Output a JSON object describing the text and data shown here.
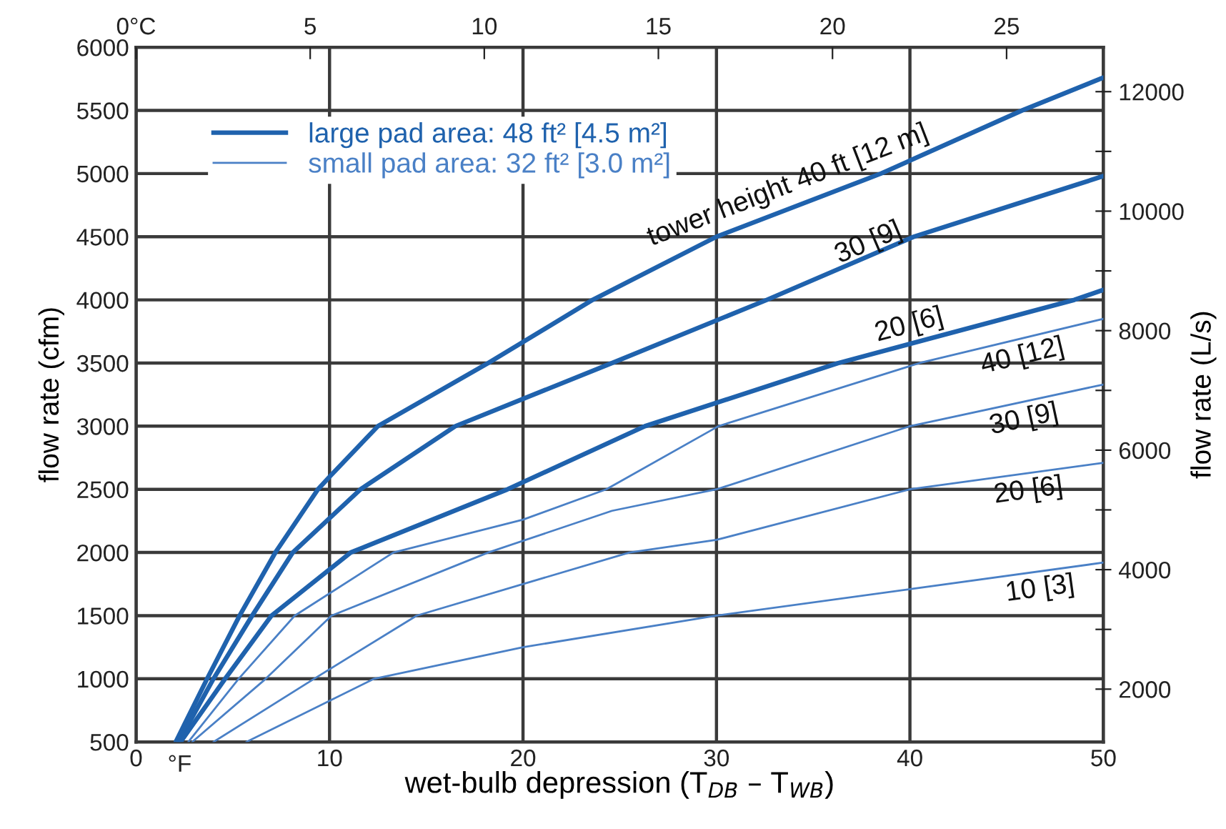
{
  "chart_data": {
    "type": "line",
    "xlabel": "wet-bulb depression (T$_{DB}$ – T$_{WB}$)",
    "ylabel": "flow rate (cfm)",
    "y2label": "flow rate (L/s)",
    "xlim": [
      0,
      50
    ],
    "xticks": [
      0,
      10,
      20,
      30,
      40,
      50
    ],
    "x2lim": [
      0,
      27.78
    ],
    "x2ticks": [
      {
        "value": 0,
        "label": "0°C"
      },
      5,
      10,
      15,
      20,
      25
    ],
    "ylim": [
      500,
      6000
    ],
    "yticks": [
      500,
      1000,
      1500,
      2000,
      2500,
      3000,
      3500,
      4000,
      4500,
      5000,
      5500,
      6000
    ],
    "y2lim": [
      1116,
      12743
    ],
    "y2ticks": [
      2000,
      {
        "value": 3000,
        "label": null
      },
      4000,
      {
        "value": 5000,
        "label": null
      },
      6000,
      {
        "value": 7000,
        "label": null
      },
      8000,
      {
        "value": 9000,
        "label": null
      },
      10000,
      {
        "value": 11000,
        "label": null
      },
      12000
    ],
    "grid": true,
    "legend": "top left",
    "marker": "none",
    "line_style": "solid",
    "series": [
      {
        "name": "large pad area: 48 ft² [4.5 m²]",
        "color": "#1f62ad",
        "x": [
          2.05,
          3.67,
          5.35,
          7.2,
          9.4,
          10,
          12.5,
          18.2,
          23.6,
          30,
          38.5,
          45.8,
          50
        ],
        "values": [
          500,
          1000,
          1500,
          2000,
          2500,
          2600,
          3000,
          3500,
          4000,
          4500,
          5000,
          5500,
          5760
        ]
      },
      {
        "color": "#1f62ad",
        "x": [
          2.2,
          4.0,
          6.0,
          8.1,
          11.6,
          16.5,
          24.6,
          32.6,
          40.2,
          50
        ],
        "values": [
          500,
          1000,
          1500,
          2000,
          2500,
          3000,
          3500,
          4000,
          4500,
          4980
        ]
      },
      {
        "color": "#1f62ad",
        "x": [
          2.3,
          4.6,
          7.0,
          11.1,
          19.2,
          26.3,
          36.3,
          48.5,
          50
        ],
        "values": [
          500,
          1000,
          1500,
          2000,
          2500,
          3000,
          3500,
          4000,
          4080
        ]
      },
      {
        "name": "small pad area: 32 ft² [3.0 m²]",
        "color": "#4a80c6",
        "x": [
          2.7,
          5.3,
          8.2,
          13.3,
          20,
          24.3,
          30.1,
          40.5,
          50
        ],
        "values": [
          500,
          1000,
          1500,
          2000,
          2260,
          2500,
          3000,
          3500,
          3850
        ]
      },
      {
        "color": "#4a80c6",
        "x": [
          2.9,
          6.7,
          10.1,
          18.2,
          24.6,
          30,
          40,
          50
        ],
        "values": [
          500,
          1000,
          1500,
          2000,
          2330,
          2500,
          3000,
          3330
        ]
      },
      {
        "color": "#4a80c6",
        "x": [
          4.0,
          9.2,
          14.5,
          25.5,
          30,
          40,
          50
        ],
        "values": [
          500,
          1000,
          1500,
          2000,
          2100,
          2500,
          2710
        ]
      },
      {
        "color": "#4a80c6",
        "x": [
          5.7,
          12.3,
          20,
          30,
          40,
          50
        ],
        "values": [
          500,
          1000,
          1250,
          1500,
          1710,
          1920
        ]
      }
    ],
    "annotations": [
      "°F",
      "tower height 40 ft [12 m]",
      "30 [9]",
      "20 [6]",
      "40 [12]",
      "30 [9]",
      "20 [6]",
      "10 [3]"
    ]
  }
}
